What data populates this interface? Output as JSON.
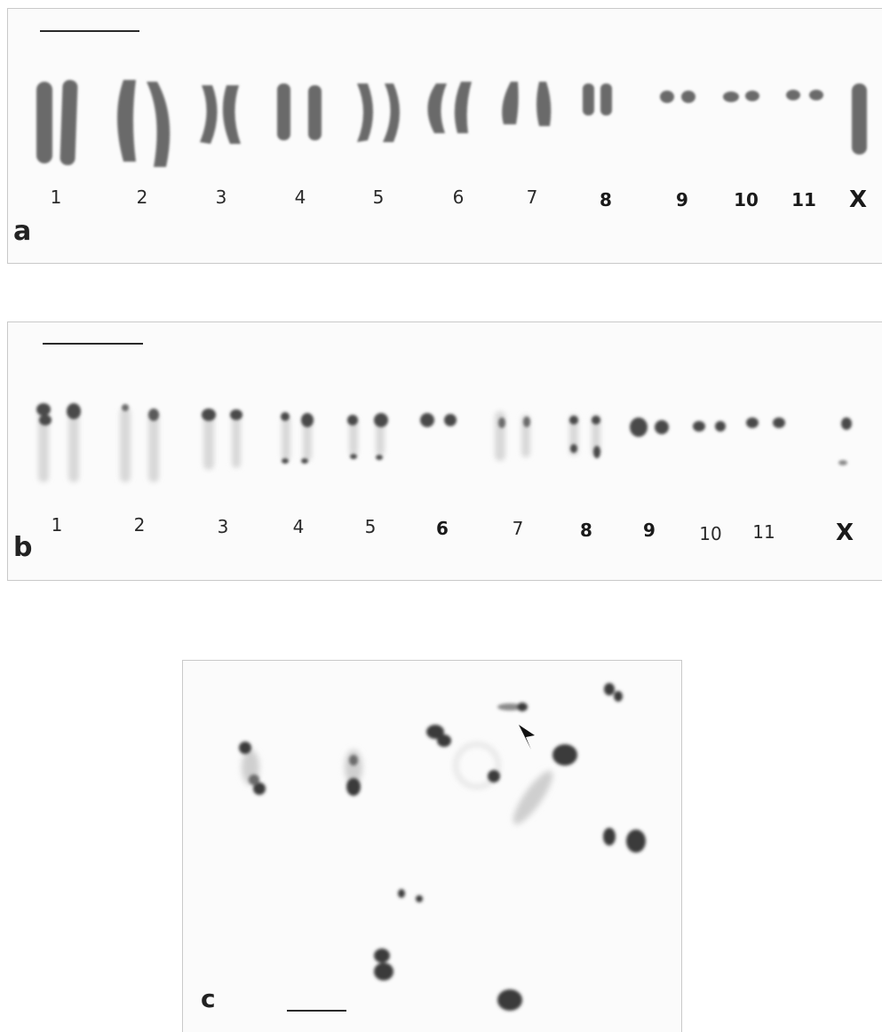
{
  "panels": {
    "a": {
      "letter": "a",
      "labels": [
        "1",
        "2",
        "3",
        "4",
        "5",
        "6",
        "7",
        "8",
        "9",
        "10",
        "11",
        "X"
      ]
    },
    "b": {
      "letter": "b",
      "labels": [
        "1",
        "2",
        "3",
        "4",
        "5",
        "6",
        "7",
        "8",
        "9",
        "10",
        "11",
        "X"
      ]
    },
    "c": {
      "letter": "c"
    }
  }
}
